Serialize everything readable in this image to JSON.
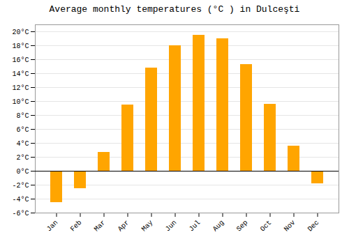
{
  "chart_data": {
    "type": "bar",
    "title": "Average monthly temperatures (°C ) in Dulceşti",
    "categories": [
      "Jan",
      "Feb",
      "Mar",
      "Apr",
      "May",
      "Jun",
      "Jul",
      "Aug",
      "Sep",
      "Oct",
      "Nov",
      "Dec"
    ],
    "values": [
      -4.5,
      -2.5,
      2.7,
      9.5,
      14.8,
      18.0,
      19.5,
      19.0,
      15.3,
      9.6,
      3.6,
      -1.8
    ],
    "color": "#FFA500",
    "ylim": [
      -6,
      21
    ],
    "yticks": [
      {
        "value": -6,
        "label": "-6°C"
      },
      {
        "value": -4,
        "label": "-4°C"
      },
      {
        "value": -2,
        "label": "-2°C"
      },
      {
        "value": 0,
        "label": "0°C"
      },
      {
        "value": 2,
        "label": "2°C"
      },
      {
        "value": 4,
        "label": "4°C"
      },
      {
        "value": 6,
        "label": "6°C"
      },
      {
        "value": 8,
        "label": "8°C"
      },
      {
        "value": 10,
        "label": "10°C"
      },
      {
        "value": 12,
        "label": "12°C"
      },
      {
        "value": 14,
        "label": "14°C"
      },
      {
        "value": 16,
        "label": "16°C"
      },
      {
        "value": 18,
        "label": "18°C"
      },
      {
        "value": 20,
        "label": "20°C"
      }
    ],
    "grid": true
  }
}
